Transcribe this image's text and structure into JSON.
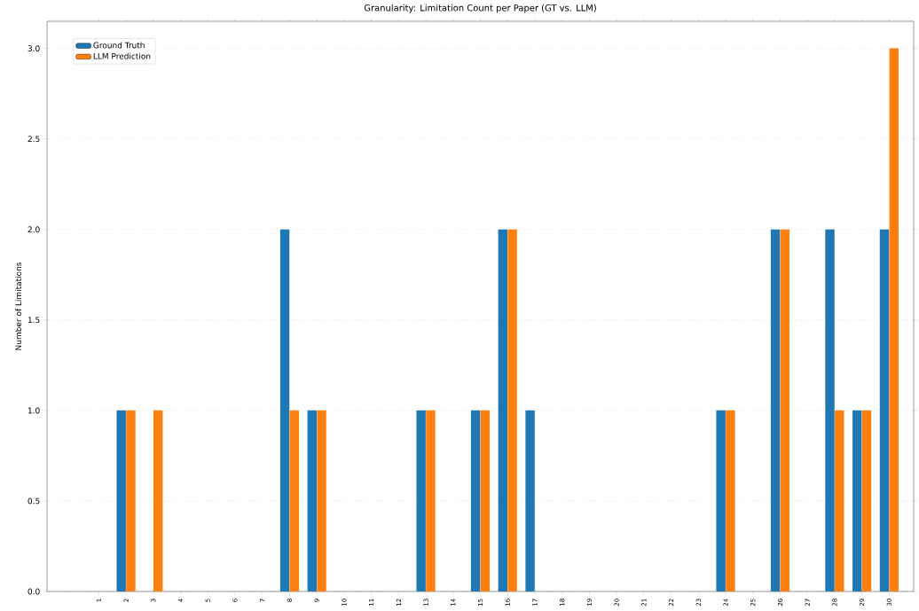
{
  "chart_data": {
    "type": "bar",
    "title": "Granularity: Limitation Count per Paper (GT vs. LLM)",
    "ylabel": "Number of Limitations",
    "categories": [
      "1",
      "2",
      "3",
      "4",
      "5",
      "6",
      "7",
      "8",
      "9",
      "10",
      "11",
      "12",
      "13",
      "14",
      "15",
      "16",
      "17",
      "18",
      "19",
      "20",
      "21",
      "22",
      "23",
      "24",
      "25",
      "26",
      "27",
      "28",
      "29",
      "30"
    ],
    "series": [
      {
        "name": "Ground Truth",
        "color": "#1f77b4",
        "values": [
          0,
          1,
          0,
          0,
          0,
          0,
          0,
          2,
          1,
          0,
          0,
          0,
          1,
          0,
          1,
          2,
          1,
          0,
          0,
          0,
          0,
          0,
          0,
          1,
          0,
          2,
          0,
          2,
          1,
          2
        ]
      },
      {
        "name": "LLM Prediction",
        "color": "#ff7f0e",
        "values": [
          0,
          1,
          1,
          0,
          0,
          0,
          0,
          1,
          1,
          0,
          0,
          0,
          1,
          0,
          1,
          2,
          0,
          0,
          0,
          0,
          0,
          0,
          0,
          1,
          0,
          2,
          0,
          1,
          1,
          3
        ]
      }
    ],
    "ylim": [
      0,
      3.15
    ],
    "yticks": [
      {
        "value": 0,
        "label": "0.0"
      },
      {
        "value": 0.5,
        "label": "0.5"
      },
      {
        "value": 1,
        "label": "1.0"
      },
      {
        "value": 1.5,
        "label": "1.5"
      },
      {
        "value": 2,
        "label": "2.0"
      },
      {
        "value": 2.5,
        "label": "2.5"
      },
      {
        "value": 3,
        "label": "3.0"
      }
    ],
    "grid": "y",
    "legend": "top left"
  }
}
